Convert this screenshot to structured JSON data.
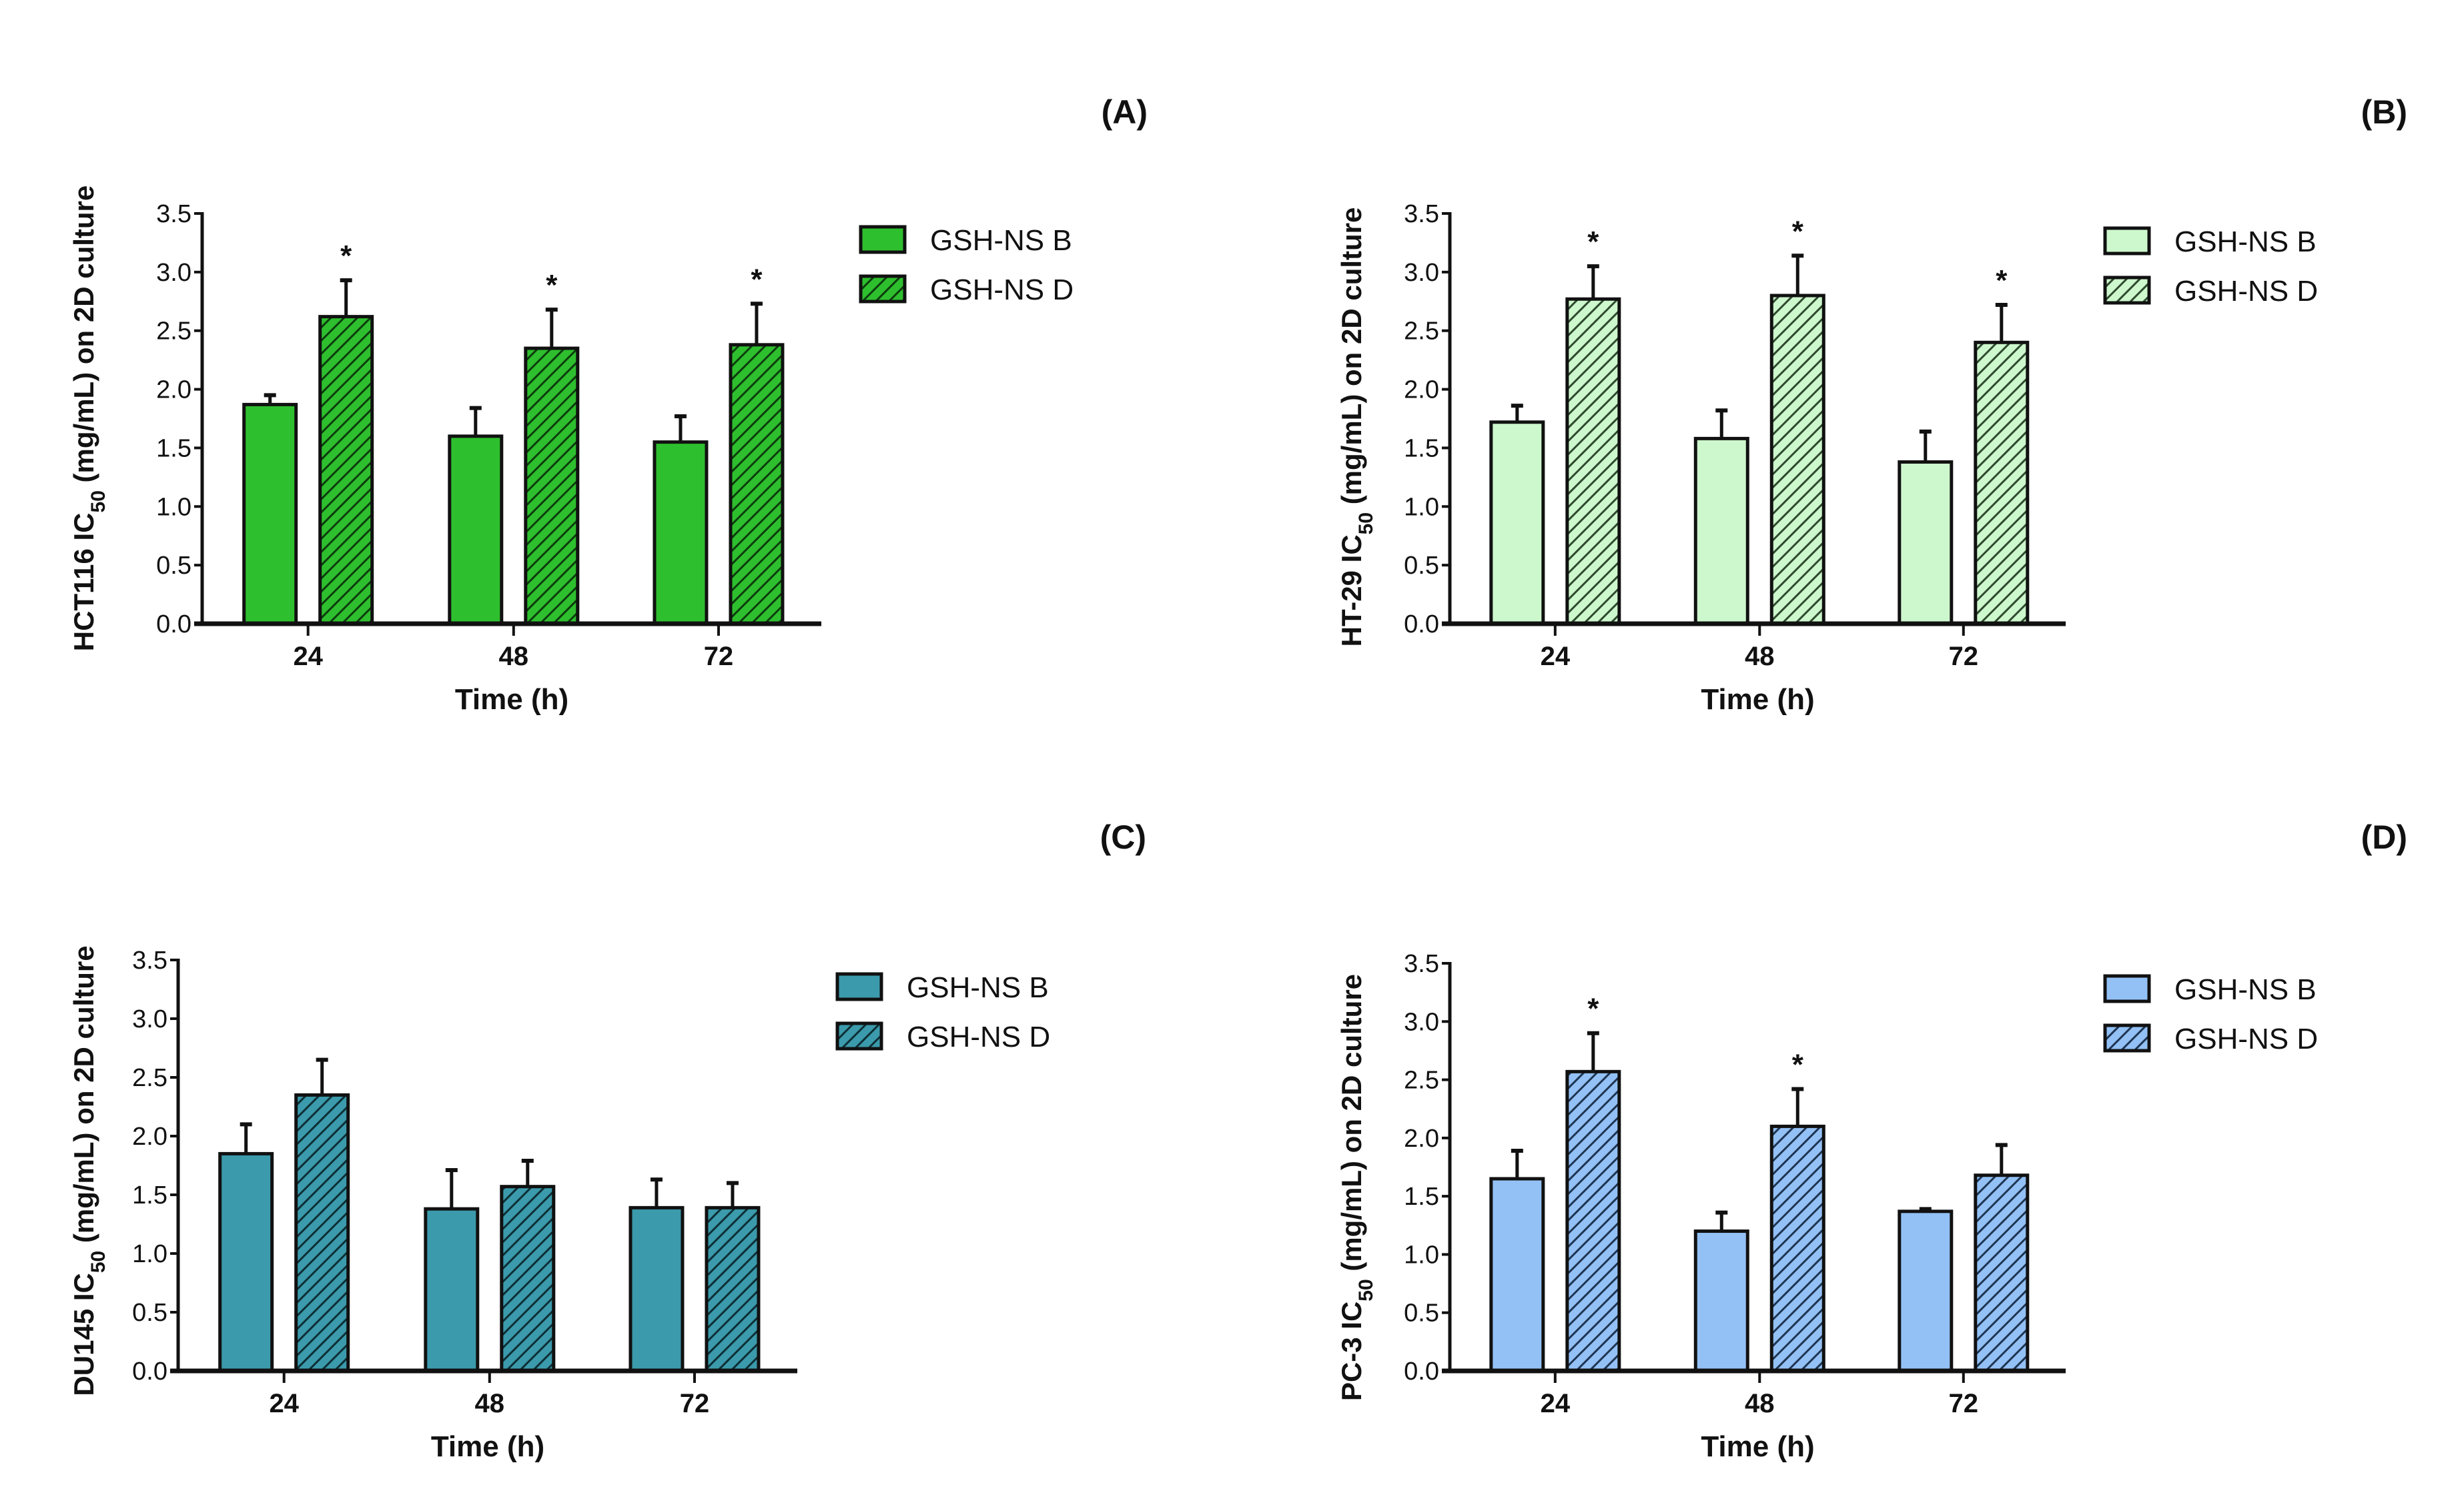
{
  "chart_data": [
    {
      "type": "bar",
      "panel_label": "(A)",
      "ylabel": {
        "prefix": "HCT116 IC",
        "sub": "50",
        "suffix": " (mg/mL) on 2D culture"
      },
      "xlabel": "Time (h)",
      "categories": [
        "24",
        "48",
        "72"
      ],
      "ylim": [
        0,
        3.5
      ],
      "yticks": [
        "0.0",
        "0.5",
        "1.0",
        "1.5",
        "2.0",
        "2.5",
        "3.0",
        "3.5"
      ],
      "legend_position": "right",
      "colors": {
        "fill": "#2ebf2e",
        "hatch": "#0d3d0d"
      },
      "series": [
        {
          "name": "GSH-NS B",
          "hatched": false,
          "values": [
            1.87,
            1.6,
            1.55
          ],
          "errors": [
            0.08,
            0.24,
            0.22
          ],
          "significant": [
            false,
            false,
            false
          ]
        },
        {
          "name": "GSH-NS D",
          "hatched": true,
          "values": [
            2.62,
            2.35,
            2.38
          ],
          "errors": [
            0.31,
            0.33,
            0.35
          ],
          "significant": [
            true,
            true,
            true
          ]
        }
      ],
      "significance_mark": "*"
    },
    {
      "type": "bar",
      "panel_label": "(B)",
      "ylabel": {
        "prefix": "HT-29 IC",
        "sub": "50",
        "suffix": " (mg/mL) on 2D culture"
      },
      "xlabel": "Time (h)",
      "categories": [
        "24",
        "48",
        "72"
      ],
      "ylim": [
        0,
        3.5
      ],
      "yticks": [
        "0.0",
        "0.5",
        "1.0",
        "1.5",
        "2.0",
        "2.5",
        "3.0",
        "3.5"
      ],
      "legend_position": "right",
      "colors": {
        "fill": "#cdf8cd",
        "hatch": "#2f4a2f"
      },
      "series": [
        {
          "name": "GSH-NS B",
          "hatched": false,
          "values": [
            1.72,
            1.58,
            1.38
          ],
          "errors": [
            0.14,
            0.24,
            0.26
          ],
          "significant": [
            false,
            false,
            false
          ]
        },
        {
          "name": "GSH-NS D",
          "hatched": true,
          "values": [
            2.77,
            2.8,
            2.4
          ],
          "errors": [
            0.28,
            0.34,
            0.32
          ],
          "significant": [
            true,
            true,
            true
          ]
        }
      ],
      "significance_mark": "*"
    },
    {
      "type": "bar",
      "panel_label": "(C)",
      "ylabel": {
        "prefix": "DU145 IC",
        "sub": "50",
        "suffix": " (mg/mL) on 2D culture"
      },
      "xlabel": "Time (h)",
      "categories": [
        "24",
        "48",
        "72"
      ],
      "ylim": [
        0,
        3.5
      ],
      "yticks": [
        "0.0",
        "0.5",
        "1.0",
        "1.5",
        "2.0",
        "2.5",
        "3.0",
        "3.5"
      ],
      "legend_position": "right",
      "colors": {
        "fill": "#3b9aab",
        "hatch": "#0e2f36"
      },
      "series": [
        {
          "name": "GSH-NS B",
          "hatched": false,
          "values": [
            1.85,
            1.38,
            1.39
          ],
          "errors": [
            0.25,
            0.33,
            0.24
          ],
          "significant": [
            false,
            false,
            false
          ]
        },
        {
          "name": "GSH-NS D",
          "hatched": true,
          "values": [
            2.35,
            1.57,
            1.39
          ],
          "errors": [
            0.3,
            0.22,
            0.21
          ],
          "significant": [
            false,
            false,
            false
          ]
        }
      ],
      "significance_mark": "*"
    },
    {
      "type": "bar",
      "panel_label": "(D)",
      "ylabel": {
        "prefix": "PC-3 IC",
        "sub": "50",
        "suffix": " (mg/mL) on 2D culture"
      },
      "xlabel": "Time (h)",
      "categories": [
        "24",
        "48",
        "72"
      ],
      "ylim": [
        0,
        3.5
      ],
      "yticks": [
        "0.0",
        "0.5",
        "1.0",
        "1.5",
        "2.0",
        "2.5",
        "3.0",
        "3.5"
      ],
      "legend_position": "right",
      "colors": {
        "fill": "#93c1f6",
        "hatch": "#1f3552"
      },
      "series": [
        {
          "name": "GSH-NS B",
          "hatched": false,
          "values": [
            1.65,
            1.2,
            1.37
          ],
          "errors": [
            0.24,
            0.16,
            0.02
          ],
          "significant": [
            false,
            false,
            false
          ]
        },
        {
          "name": "GSH-NS D",
          "hatched": true,
          "values": [
            2.57,
            2.1,
            1.68
          ],
          "errors": [
            0.33,
            0.32,
            0.26
          ],
          "significant": [
            true,
            true,
            false
          ]
        }
      ],
      "significance_mark": "*"
    }
  ]
}
